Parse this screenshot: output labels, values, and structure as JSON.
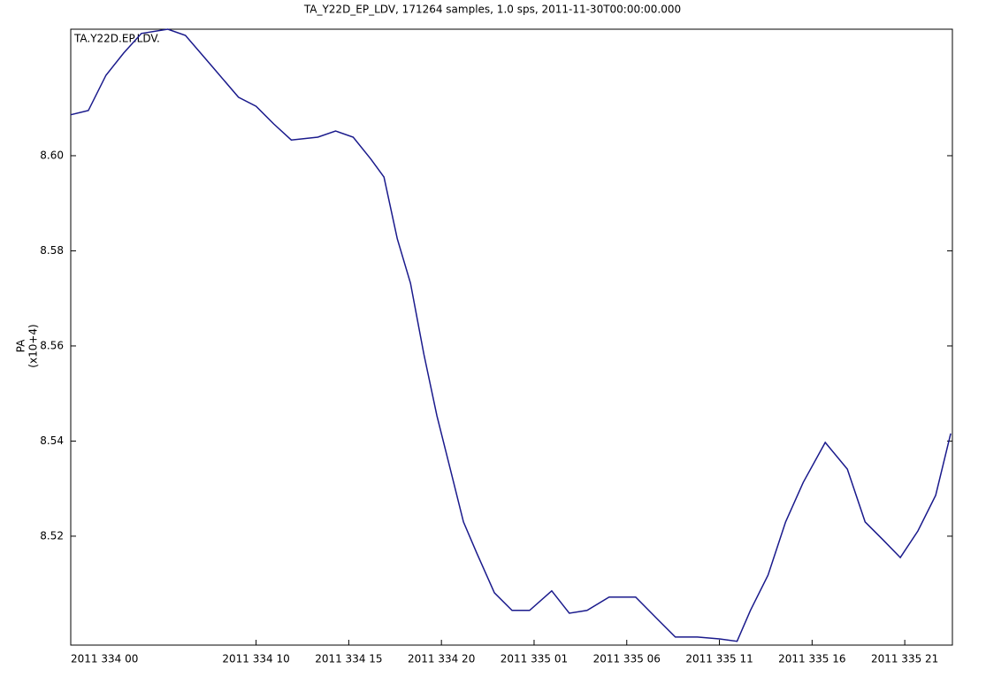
{
  "chart_data": {
    "type": "line",
    "title": "TA_Y22D_EP_LDV, 171264 samples, 1.0 sps, 2011-11-30T00:00:00.000",
    "annotation": "TA.Y22D.EP.LDV.",
    "y_label": "PA",
    "y_label_scale": "(x10+4)",
    "x": [
      0,
      0.95,
      1.9,
      2.86,
      3.81,
      5.24,
      6.19,
      7.62,
      9.05,
      10,
      10.95,
      11.9,
      13.33,
      14.29,
      15.24,
      16.19,
      16.9,
      17.62,
      18.33,
      19.05,
      19.76,
      20.48,
      21.19,
      21.9,
      22.86,
      23.81,
      24.76,
      25.95,
      26.9,
      27.86,
      29.05,
      30.48,
      31.67,
      32.62,
      33.81,
      35,
      35.95,
      36.67,
      37.62,
      38.57,
      39.52,
      40.71,
      41.9,
      42.86,
      43.81,
      44.76,
      45.71,
      46.67,
      47.48
    ],
    "series": [
      {
        "name": "TA.Y22D.EP.LDV.",
        "color": "#1a1a8c",
        "values": [
          8.6086,
          8.6095,
          8.6169,
          8.6216,
          8.6257,
          8.6266,
          8.6253,
          8.6188,
          8.6123,
          8.6104,
          8.6067,
          8.6033,
          8.6039,
          8.6052,
          8.6039,
          8.5993,
          8.5955,
          8.5825,
          8.5732,
          8.5583,
          8.5453,
          8.5341,
          8.523,
          8.5165,
          8.5081,
          8.5044,
          8.5044,
          8.5085,
          8.5038,
          8.5044,
          8.5072,
          8.5072,
          8.5025,
          8.4988,
          8.4988,
          8.4984,
          8.4979,
          8.5044,
          8.5118,
          8.523,
          8.5313,
          8.5397,
          8.5341,
          8.523,
          8.5193,
          8.5155,
          8.5211,
          8.5286,
          8.5416
        ]
      }
    ],
    "xlim": [
      0,
      47.57
    ],
    "xticks": [
      {
        "value": 0,
        "label": "2011 334 00"
      },
      {
        "value": 10,
        "label": "2011 334 10"
      },
      {
        "value": 15,
        "label": "2011 334 15"
      },
      {
        "value": 20,
        "label": "2011 334 20"
      },
      {
        "value": 25,
        "label": "2011 335 01"
      },
      {
        "value": 30,
        "label": "2011 335 06"
      },
      {
        "value": 35,
        "label": "2011 335 11"
      },
      {
        "value": 40,
        "label": "2011 335 16"
      },
      {
        "value": 45,
        "label": "2011 335 21"
      }
    ],
    "ylim": [
      8.4971,
      8.6266
    ],
    "yticks": [
      8.52,
      8.54,
      8.56,
      8.58,
      {
        "value": 8.6,
        "label": "8.60"
      }
    ]
  }
}
